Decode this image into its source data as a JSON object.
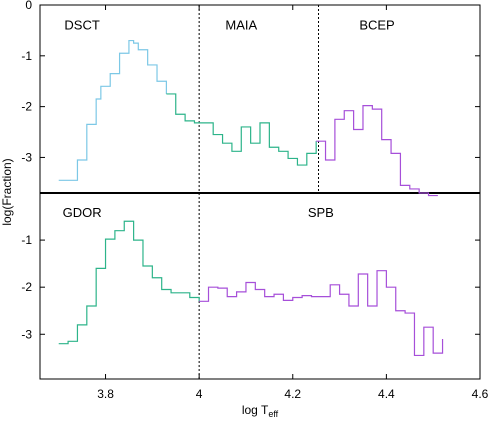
{
  "chart_data": {
    "type": "line",
    "style": "step",
    "xlabel": "log T",
    "xlabel_sub": "eff",
    "ylabel": "log(Fraction)",
    "xlim": [
      3.66,
      4.6
    ],
    "x_ticks": [
      3.8,
      4.0,
      4.2,
      4.4,
      4.6
    ],
    "x_tick_labels": [
      "3.8",
      "4",
      "4.2",
      "4.4",
      "4.6"
    ],
    "y_ticks": [
      0,
      -1,
      -2,
      -3
    ],
    "y_tick_labels": [
      "0",
      "-1",
      "-2",
      "-3"
    ],
    "colors": {
      "blue": "#7cc8e6",
      "green": "#2db48a",
      "purple": "#a64fd9"
    },
    "panels": [
      {
        "id": "top",
        "ylim": [
          -3.7,
          0
        ],
        "labels": [
          {
            "text": "DSCT",
            "x": 3.75,
            "y": -0.38
          },
          {
            "text": "MAIA",
            "x": 4.09,
            "y": -0.38
          },
          {
            "text": "BCEP",
            "x": 4.38,
            "y": -0.38
          }
        ],
        "boundaries": [
          4.0,
          4.255
        ],
        "series": [
          {
            "color_key": "blue",
            "x": [
              3.7,
              3.74,
              3.76,
              3.78,
              3.79,
              3.81,
              3.83,
              3.85,
              3.86,
              3.87,
              3.89,
              3.91,
              3.93
            ],
            "y": [
              -3.45,
              -3.05,
              -2.35,
              -1.85,
              -1.6,
              -1.35,
              -0.95,
              -0.7,
              -0.75,
              -0.88,
              -1.18,
              -1.5,
              -1.75
            ]
          },
          {
            "color_key": "green",
            "x": [
              3.93,
              3.95,
              3.97,
              3.99,
              4.01,
              4.03,
              4.05,
              4.07,
              4.09,
              4.11,
              4.13,
              4.15,
              4.17,
              4.19,
              4.21,
              4.23,
              4.25
            ],
            "y": [
              -1.75,
              -2.15,
              -2.28,
              -2.32,
              -2.32,
              -2.55,
              -2.72,
              -2.88,
              -2.4,
              -2.72,
              -2.32,
              -2.8,
              -2.88,
              -3.02,
              -3.15,
              -2.92,
              -2.68
            ]
          },
          {
            "color_key": "purple",
            "x": [
              4.25,
              4.27,
              4.29,
              4.31,
              4.33,
              4.35,
              4.37,
              4.39,
              4.41,
              4.43,
              4.45,
              4.47,
              4.49,
              4.51
            ],
            "y": [
              -2.68,
              -3.05,
              -2.25,
              -2.08,
              -2.45,
              -1.98,
              -2.05,
              -2.65,
              -2.92,
              -3.55,
              -3.62,
              -3.7,
              -3.75,
              -3.75
            ]
          }
        ]
      },
      {
        "id": "bottom",
        "ylim": [
          -3.95,
          0
        ],
        "labels": [
          {
            "text": "GDOR",
            "x": 3.75,
            "y": -0.4
          },
          {
            "text": "SPB",
            "x": 4.26,
            "y": -0.4
          }
        ],
        "boundaries": [
          4.0
        ],
        "series": [
          {
            "color_key": "green",
            "x": [
              3.7,
              3.72,
              3.74,
              3.76,
              3.78,
              3.8,
              3.82,
              3.84,
              3.86,
              3.88,
              3.9,
              3.92,
              3.94,
              3.96,
              3.98,
              4.0
            ],
            "y": [
              -3.2,
              -3.15,
              -2.8,
              -2.4,
              -1.6,
              -0.98,
              -0.8,
              -0.6,
              -1.0,
              -1.55,
              -1.8,
              -2.05,
              -2.12,
              -2.12,
              -2.22,
              -2.3
            ]
          },
          {
            "color_key": "purple",
            "x": [
              4.0,
              4.02,
              4.04,
              4.06,
              4.08,
              4.1,
              4.12,
              4.14,
              4.16,
              4.18,
              4.2,
              4.22,
              4.24,
              4.26,
              4.28,
              4.3,
              4.32,
              4.34,
              4.36,
              4.38,
              4.4,
              4.42,
              4.44,
              4.46,
              4.48,
              4.5,
              4.52
            ],
            "y": [
              -2.3,
              -2.0,
              -2.02,
              -2.2,
              -2.1,
              -1.9,
              -2.05,
              -2.2,
              -2.15,
              -2.28,
              -2.22,
              -2.18,
              -2.2,
              -2.2,
              -1.95,
              -2.15,
              -2.4,
              -1.72,
              -2.4,
              -1.65,
              -2.0,
              -2.5,
              -2.55,
              -3.45,
              -2.85,
              -3.4,
              -3.1
            ]
          }
        ]
      }
    ]
  }
}
